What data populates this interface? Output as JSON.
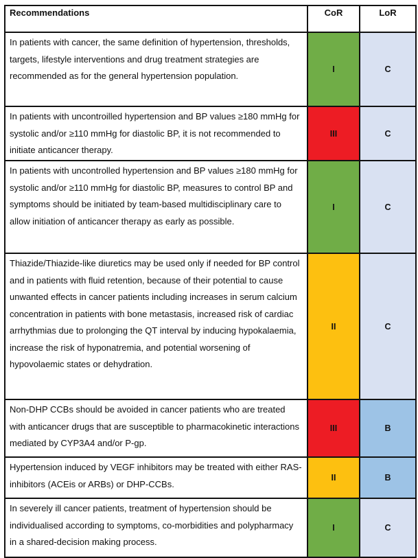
{
  "header": {
    "recommendations": "Recommendations",
    "cor": "CoR",
    "lor": "LoR"
  },
  "colors": {
    "I": "#70ad47",
    "II": "#fdc010",
    "III": "#ed1c24",
    "C": "#d9e1f2",
    "B": "#9dc3e6"
  },
  "rows": [
    {
      "text": "In patients with cancer, the same definition of hypertension, thresholds, targets, lifestyle interventions and drug treatment strategies are recommended as for the general hypertension population.",
      "cor": "I",
      "lor": "C"
    },
    {
      "text": "In patients with uncontroilled hypertension and BP values ≥180 mmHg for systolic and/or  ≥110 mmHg for diastolic BP, it is not recommended to initiate anticancer therapy.",
      "cor": "III",
      "lor": "C"
    },
    {
      "text": "In patients with uncontrolled hypertension and BP values ≥180 mmHg for systolic and/or ≥110 mmHg for diastolic BP, measures to control BP and symptoms should be initiated by team-based multidisciplinary care to allow initiation of anticancer therapy as early as possible.",
      "cor": "I",
      "lor": "C"
    },
    {
      "text": "Thiazide/Thiazide-like diuretics may be used only if needed for BP control and in patients with fluid retention, because of their potential to cause unwanted effects in cancer patients including increases in serum calcium concentration in patients with bone metastasis,  increased risk of cardiac arrhythmias due to prolonging the QT interval by inducing hypokalaemia,  increase the risk of hyponatremia, and potential worsening of hypovolaemic states or dehydration.",
      "cor": "II",
      "lor": "C"
    },
    {
      "text": "Non-DHP CCBs should be avoided in cancer patients who are treated with anticancer drugs that are susceptible to pharmacokinetic interactions mediated by CYP3A4 and/or P-gp.",
      "cor": "III",
      "lor": "B"
    },
    {
      "text": "Hypertension induced by VEGF inhibitors may be treated with either RAS-inhibitors (ACEis or ARBs) or DHP-CCBs.",
      "cor": "II",
      "lor": "B"
    },
    {
      "text": "In severely ill cancer patients, treatment of hypertension should be individualised according to symptoms, co-morbidities and polypharmacy in a shared-decision making process.",
      "cor": "I",
      "lor": "C"
    }
  ]
}
